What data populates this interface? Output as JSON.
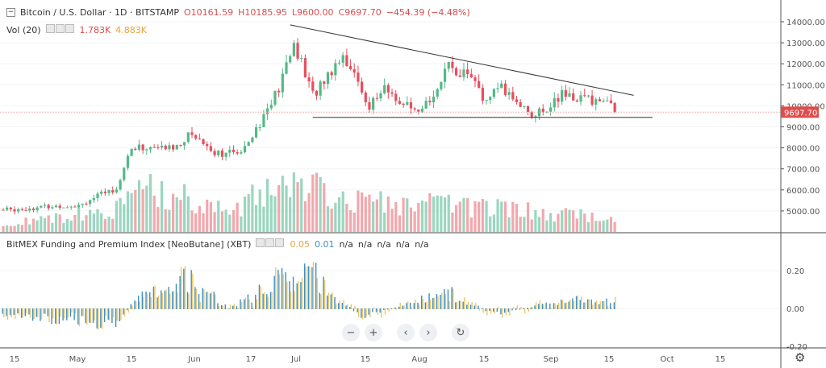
{
  "header": {
    "symbol": "Bitcoin / U.S. Dollar · 1D · BITSTAMP",
    "open": "O10161.59",
    "high": "H10185.95",
    "low": "L9600.00",
    "close": "C9697.70",
    "change": "−454.39 (−4.48%)"
  },
  "volume_legend": {
    "label": "Vol (20)",
    "v1": "1.783K",
    "v2": "4.883K"
  },
  "indicator_legend": {
    "label": "BitMEX Funding and Premium Index [NeoButane] (XBT)",
    "v1": "0.05",
    "v2": "0.01",
    "na": [
      "n/a",
      "n/a",
      "n/a",
      "n/a",
      "n/a"
    ]
  },
  "nav": {
    "zoom_out": "−",
    "zoom_in": "+",
    "left": "‹",
    "right": "›",
    "reset": "↻"
  },
  "chart_data": {
    "type": "candlestick",
    "price_axis": {
      "ticks": [
        "14000.00",
        "13000.00",
        "12000.00",
        "11000.00",
        "10000.00",
        "9000.00",
        "8000.00",
        "7000.00",
        "6000.00",
        "5000.00"
      ],
      "range": [
        4300,
        14500
      ],
      "last_price": "9697.70"
    },
    "indicator_axis": {
      "ticks": [
        "0.20",
        "0.00",
        "-0.20"
      ],
      "range": [
        -0.2,
        0.3
      ]
    },
    "x_ticks": [
      "15",
      "May",
      "15",
      "Jun",
      "17",
      "Jul",
      "15",
      "Aug",
      "15",
      "Sep",
      "15",
      "Oct",
      "15"
    ],
    "close_keypoints_day_price": [
      [
        0,
        5050
      ],
      [
        20,
        5300
      ],
      [
        30,
        6100
      ],
      [
        34,
        8000
      ],
      [
        45,
        8000
      ],
      [
        50,
        8700
      ],
      [
        56,
        7800
      ],
      [
        62,
        7700
      ],
      [
        68,
        9200
      ],
      [
        73,
        10800
      ],
      [
        77,
        13000
      ],
      [
        82,
        10500
      ],
      [
        90,
        12500
      ],
      [
        97,
        10000
      ],
      [
        101,
        10800
      ],
      [
        110,
        9500
      ],
      [
        118,
        11800
      ],
      [
        124,
        11500
      ],
      [
        127,
        10200
      ],
      [
        132,
        10800
      ],
      [
        141,
        9500
      ],
      [
        148,
        10500
      ],
      [
        160,
        10200
      ],
      [
        162,
        9697.7
      ]
    ],
    "volume_keypoints_day_k": [
      [
        0,
        1
      ],
      [
        30,
        3
      ],
      [
        38,
        5.5
      ],
      [
        60,
        3
      ],
      [
        77,
        6.7
      ],
      [
        90,
        4
      ],
      [
        120,
        3.5
      ],
      [
        162,
        1.8
      ]
    ],
    "indicator_keypoints_day_value": [
      [
        0,
        -0.03
      ],
      [
        30,
        -0.1
      ],
      [
        35,
        0.05
      ],
      [
        50,
        0.2
      ],
      [
        60,
        0.0
      ],
      [
        72,
        0.15
      ],
      [
        77,
        0.3
      ],
      [
        85,
        0.15
      ],
      [
        95,
        -0.05
      ],
      [
        118,
        0.1
      ],
      [
        130,
        -0.03
      ],
      [
        150,
        0.05
      ],
      [
        162,
        0.05
      ]
    ],
    "trendlines": [
      {
        "from": [
          76,
          13850
        ],
        "to": [
          167,
          10500
        ]
      },
      {
        "from": [
          82,
          9450
        ],
        "to": [
          172,
          9450
        ]
      }
    ]
  }
}
